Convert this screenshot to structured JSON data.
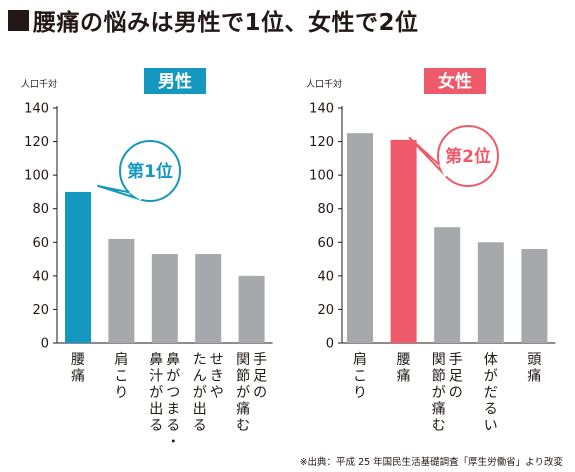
{
  "heading": "腰痛の悩みは男性で1位、女性で2位",
  "source": "※出典：平成 25 年国民生活基礎調査「厚生労働省」より改変",
  "colors": {
    "male_accent": "#1598bf",
    "female_accent": "#ee5a6a",
    "bar_gray": "#a7a8ab",
    "axis": "#231815"
  },
  "chart_data": [
    {
      "type": "bar",
      "title": "男性",
      "ylabel": "人口千対",
      "ylim": [
        0,
        140
      ],
      "yticks": [
        0,
        20,
        40,
        60,
        80,
        100,
        120,
        140
      ],
      "categories": [
        "腰痛",
        "肩こり",
        "鼻がつまる・鼻汁が出る",
        "せきやたんが出る",
        "手足の関節が痛む"
      ],
      "category_lines": [
        [
          "腰痛"
        ],
        [
          "肩こり"
        ],
        [
          "鼻がつまる・",
          "鼻汁が出る"
        ],
        [
          "せきや",
          "たんが出る"
        ],
        [
          "手足の",
          "関節が痛む"
        ]
      ],
      "values": [
        90,
        62,
        53,
        53,
        40
      ],
      "highlight_index": 0,
      "annotation": "第1位",
      "accent": "#1598bf"
    },
    {
      "type": "bar",
      "title": "女性",
      "ylabel": "人口千対",
      "ylim": [
        0,
        140
      ],
      "yticks": [
        0,
        20,
        40,
        60,
        80,
        100,
        120,
        140
      ],
      "categories": [
        "肩こり",
        "腰痛",
        "手足の関節が痛む",
        "体がだるい",
        "頭痛"
      ],
      "category_lines": [
        [
          "肩こり"
        ],
        [
          "腰痛"
        ],
        [
          "手足の",
          "関節が痛む"
        ],
        [
          "体がだるい"
        ],
        [
          "頭痛"
        ]
      ],
      "values": [
        125,
        121,
        69,
        60,
        56
      ],
      "highlight_index": 1,
      "annotation": "第2位",
      "accent": "#ee5a6a"
    }
  ]
}
